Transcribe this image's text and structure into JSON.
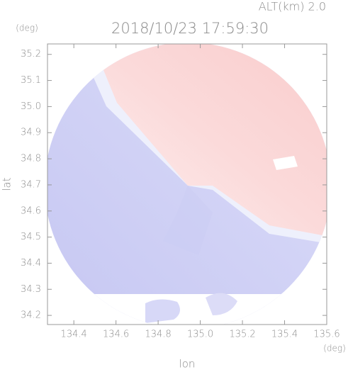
{
  "chart_data": {
    "type": "radar-map",
    "title": "2018/10/23 17:59:30",
    "subtitle": "ALT(km) 2.0",
    "x_label": "lon",
    "x_unit": "(deg)",
    "y_label": "lat",
    "y_unit": "(deg)",
    "xlim": [
      134.275,
      135.6
    ],
    "ylim": [
      34.165,
      35.24
    ],
    "xticks": [
      134.4,
      134.6,
      134.8,
      {
        "value": 135,
        "label": "135.0"
      },
      135.2,
      135.4,
      135.6
    ],
    "yticks": [
      34.2,
      34.3,
      34.4,
      34.5,
      34.6,
      34.7,
      34.8,
      34.9,
      {
        "value": 35,
        "label": "35.0"
      },
      35.1,
      35.2
    ]
  }
}
